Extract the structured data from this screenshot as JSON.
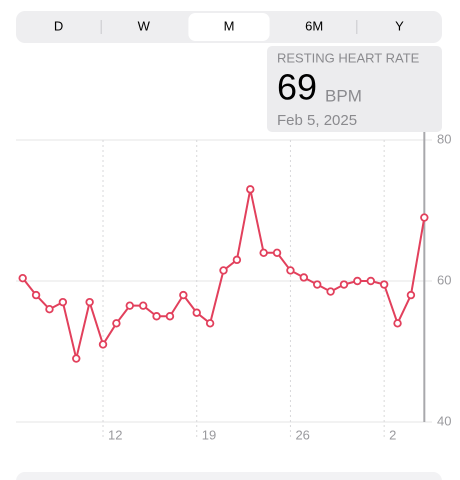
{
  "segmented_control": {
    "options": [
      "D",
      "W",
      "M",
      "6M",
      "Y"
    ],
    "selected": 2
  },
  "tooltip": {
    "title": "RESTING HEART RATE",
    "value": 69,
    "unit": "BPM",
    "date": "Feb 5, 2025"
  },
  "chart_data": {
    "type": "line",
    "x": [
      6,
      7,
      8,
      9,
      10,
      11,
      12,
      13,
      14,
      15,
      16,
      17,
      18,
      19,
      20,
      21,
      22,
      23,
      24,
      25,
      26,
      27,
      28,
      29,
      30,
      31,
      32,
      33,
      34,
      35,
      36
    ],
    "values": [
      60.4,
      58,
      56,
      57,
      49,
      57,
      51,
      54,
      56.5,
      56.5,
      55,
      55,
      58,
      55.5,
      54,
      61.5,
      63,
      73,
      64,
      64,
      61.5,
      60.5,
      59.5,
      58.5,
      59.5,
      60,
      60,
      59.5,
      54,
      58,
      69
    ],
    "color": "#e2405c",
    "xlim": [
      5.5,
      36.2
    ],
    "ylim": [
      40,
      80
    ],
    "xticks": [
      12,
      19,
      26,
      {
        "value": 33,
        "label": "2"
      }
    ],
    "yticks": [
      40,
      60,
      80
    ],
    "grid": true
  }
}
